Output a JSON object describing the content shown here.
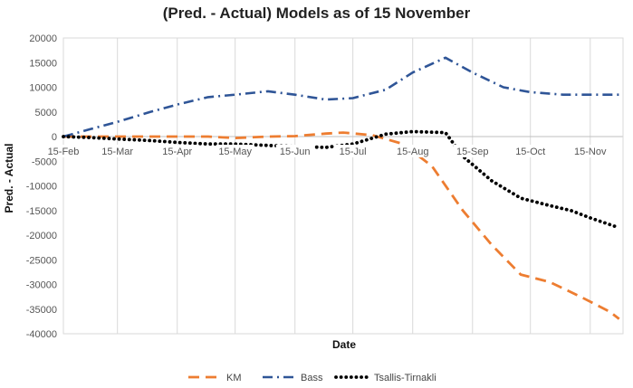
{
  "chart_data": {
    "type": "line",
    "title": "(Pred. - Actual) Models as of 15 November",
    "xlabel": "Date",
    "ylabel": "Pred. - Actual",
    "x_ticks": [
      "15-Feb",
      "15-Mar",
      "15-Apr",
      "15-May",
      "15-Jun",
      "15-Jul",
      "15-Aug",
      "15-Sep",
      "15-Oct",
      "15-Nov"
    ],
    "ylim": [
      -40000,
      20000
    ],
    "y_ticks": [
      20000,
      15000,
      10000,
      5000,
      0,
      -5000,
      -10000,
      -15000,
      -20000,
      -25000,
      -30000,
      -35000,
      -40000
    ],
    "grid": "vertical",
    "legend_position": "bottom",
    "series": [
      {
        "name": "KM",
        "color": "#ED7D31",
        "dash": "long-dash",
        "points": [
          [
            "15-Feb",
            0
          ],
          [
            "1-Mar",
            0
          ],
          [
            "15-Mar",
            0
          ],
          [
            "1-Apr",
            0
          ],
          [
            "15-Apr",
            0
          ],
          [
            "1-May",
            0
          ],
          [
            "15-May",
            -300
          ],
          [
            "1-Jun",
            0
          ],
          [
            "15-Jun",
            100
          ],
          [
            "1-Jul",
            600
          ],
          [
            "10-Jul",
            800
          ],
          [
            "25-Jul",
            300
          ],
          [
            "10-Aug",
            -1500
          ],
          [
            "25-Aug",
            -6000
          ],
          [
            "10-Sep",
            -15000
          ],
          [
            "25-Sep",
            -22000
          ],
          [
            "10-Oct",
            -28000
          ],
          [
            "25-Oct",
            -29500
          ],
          [
            "10-Nov",
            -32500
          ],
          [
            "25-Nov",
            -35500
          ],
          [
            "30-Nov",
            -37000
          ]
        ]
      },
      {
        "name": "Bass",
        "color": "#2F5597",
        "dash": "dash-dot",
        "points": [
          [
            "15-Feb",
            0
          ],
          [
            "1-Mar",
            1500
          ],
          [
            "15-Mar",
            3000
          ],
          [
            "1-Apr",
            5000
          ],
          [
            "15-Apr",
            6500
          ],
          [
            "1-May",
            8000
          ],
          [
            "15-May",
            8500
          ],
          [
            "1-Jun",
            9200
          ],
          [
            "15-Jun",
            8500
          ],
          [
            "1-Jul",
            7500
          ],
          [
            "15-Jul",
            7800
          ],
          [
            "1-Aug",
            9500
          ],
          [
            "15-Aug",
            13000
          ],
          [
            "1-Sep",
            16000
          ],
          [
            "15-Sep",
            13000
          ],
          [
            "1-Oct",
            10000
          ],
          [
            "15-Oct",
            9000
          ],
          [
            "1-Nov",
            8500
          ],
          [
            "15-Nov",
            8500
          ],
          [
            "30-Nov",
            8500
          ]
        ]
      },
      {
        "name": "Tsallis-Tirnakli",
        "color": "#000000",
        "dash": "dotted",
        "points": [
          [
            "15-Feb",
            0
          ],
          [
            "1-Mar",
            -200
          ],
          [
            "15-Mar",
            -500
          ],
          [
            "1-Apr",
            -800
          ],
          [
            "15-Apr",
            -1200
          ],
          [
            "1-May",
            -1500
          ],
          [
            "15-May",
            -1500
          ],
          [
            "1-Jun",
            -1800
          ],
          [
            "15-Jun",
            -2000
          ],
          [
            "1-Jul",
            -2200
          ],
          [
            "15-Jul",
            -1500
          ],
          [
            "1-Aug",
            500
          ],
          [
            "15-Aug",
            1000
          ],
          [
            "1-Sep",
            800
          ],
          [
            "10-Sep",
            -4000
          ],
          [
            "25-Sep",
            -9000
          ],
          [
            "10-Oct",
            -12500
          ],
          [
            "25-Oct",
            -14000
          ],
          [
            "5-Nov",
            -15000
          ],
          [
            "15-Nov",
            -16500
          ],
          [
            "30-Nov",
            -18500
          ]
        ]
      }
    ]
  }
}
